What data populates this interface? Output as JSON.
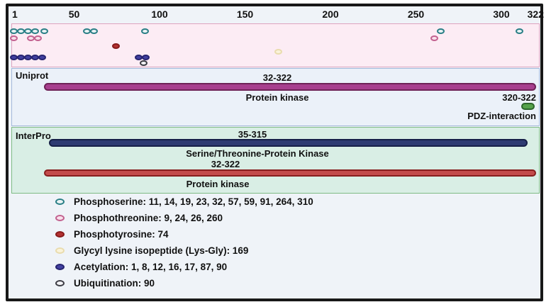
{
  "ruler": {
    "min": 1,
    "max": 322,
    "ticks": [
      {
        "label": "1",
        "value": 1
      },
      {
        "label": "50",
        "value": 50
      },
      {
        "label": "100",
        "value": 100
      },
      {
        "label": "150",
        "value": 150
      },
      {
        "label": "200",
        "value": 200
      },
      {
        "label": "250",
        "value": 250
      },
      {
        "label": "300",
        "value": 300
      },
      {
        "label": "322",
        "value": 322
      }
    ]
  },
  "ptm_track": {
    "rows": [
      {
        "type": "phosphoserine",
        "marker": "teal-open-dot",
        "positions": [
          11,
          14,
          19,
          23,
          32,
          57,
          59,
          91,
          264,
          310
        ],
        "fill": "#e9f3f4",
        "border": "#2a7f86"
      },
      {
        "type": "phosphothreonine",
        "marker": "pink-open-dot",
        "positions": [
          9,
          24,
          26,
          260
        ],
        "fill": "#f9dfeb",
        "border": "#c2618f"
      },
      {
        "type": "phosphotyrosine",
        "marker": "red-filled-dot",
        "positions": [
          74
        ],
        "fill": "#b33232",
        "border": "#871a1a"
      },
      {
        "type": "glycyl-lysine-isopeptide",
        "marker": "cream-open-dot",
        "positions": [
          169
        ],
        "fill": "#faf3da",
        "border": "#e9dcae"
      },
      {
        "type": "acetylation",
        "marker": "indigo-filled-dot",
        "positions": [
          1,
          8,
          12,
          16,
          17,
          87,
          90
        ],
        "fill": "#4240a0",
        "border": "#262470"
      },
      {
        "type": "ubiquitination",
        "marker": "gray-open-dot",
        "positions": [
          90
        ],
        "fill": "#f3f3f6",
        "border": "#3c3c44"
      }
    ]
  },
  "sections": [
    {
      "id": "uniprot",
      "label": "Uniprot",
      "features": [
        {
          "name": "Protein kinase",
          "range": "32-322",
          "start": 32,
          "end": 322,
          "shape": "bar",
          "fill": "#a73f8e",
          "border": "#6e2257"
        },
        {
          "name": "PDZ-interaction",
          "range": "320-322",
          "start": 320,
          "end": 322,
          "shape": "oval",
          "fill": "#56a24b",
          "border": "#2d662b"
        }
      ]
    },
    {
      "id": "interpro",
      "label": "InterPro",
      "features": [
        {
          "name": "Serine/Threonine-Protein Kinase",
          "range": "35-315",
          "start": 35,
          "end": 315,
          "shape": "bar",
          "fill": "#2e3b72",
          "border": "#161f48"
        },
        {
          "name": "Protein kinase",
          "range": "32-322",
          "start": 32,
          "end": 322,
          "shape": "bar",
          "fill": "#c34b4b",
          "border": "#881e1e"
        }
      ]
    }
  ],
  "legend": [
    {
      "name": "Phosphoserine",
      "positions": "11, 14, 19, 23, 32, 57, 59, 91, 264, 310",
      "label": "Phosphoserine: 11, 14, 19, 23, 32, 57, 59, 91, 264, 310",
      "fill": "#e9f3f4",
      "border": "#2a7f86"
    },
    {
      "name": "Phosphothreonine",
      "positions": "9, 24, 26, 260",
      "label": "Phosphothreonine: 9, 24, 26, 260",
      "fill": "#f9dfeb",
      "border": "#c2618f"
    },
    {
      "name": "Phosphotyrosine",
      "positions": "74",
      "label": "Phosphotyrosine: 74",
      "fill": "#b33232",
      "border": "#871a1a"
    },
    {
      "name": "Glycyl lysine isopeptide (Lys-Gly)",
      "positions": "169",
      "label": "Glycyl lysine isopeptide (Lys-Gly): 169",
      "fill": "#faf3da",
      "border": "#e9dcae"
    },
    {
      "name": "Acetylation",
      "positions": "1, 8, 12, 16, 17, 87, 90",
      "label": "Acetylation: 1, 8, 12, 16, 17, 87, 90",
      "fill": "#4240a0",
      "border": "#262470"
    },
    {
      "name": "Ubiquitination",
      "positions": "90",
      "label": "Ubiquitination: 90",
      "fill": "#f3f3f6",
      "border": "#3c3c44"
    }
  ]
}
